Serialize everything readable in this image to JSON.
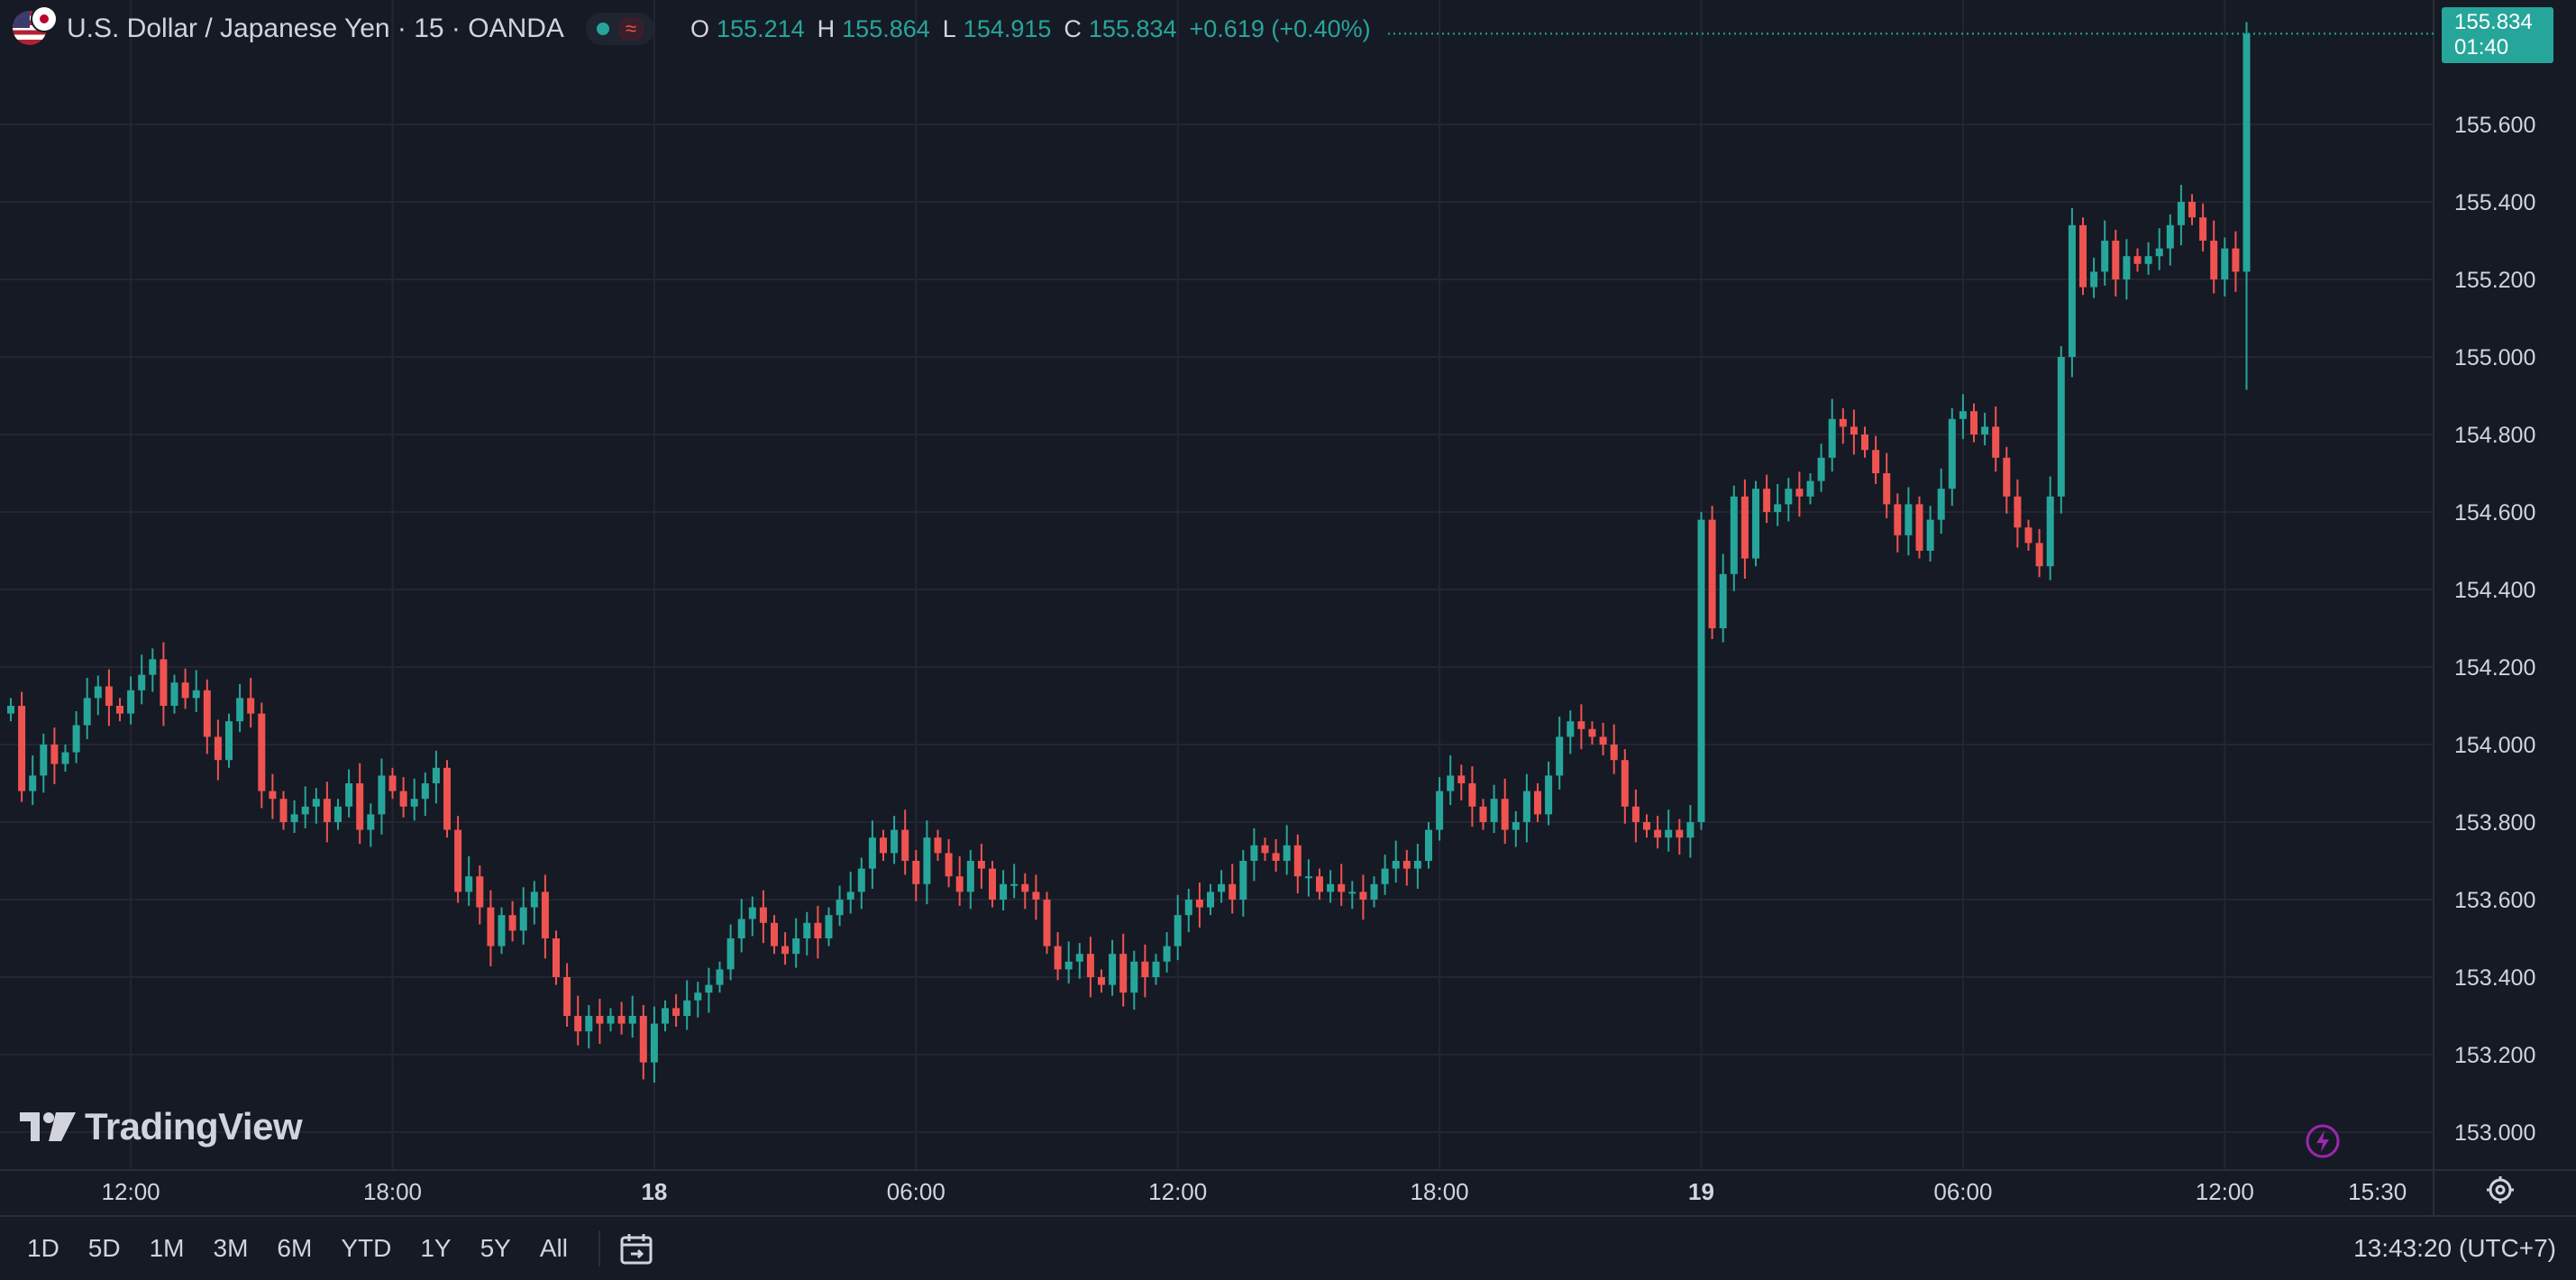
{
  "header": {
    "symbol_title": "U.S. Dollar / Japanese Yen · 15 · OANDA",
    "o_key": "O",
    "o_val": "155.214",
    "h_key": "H",
    "h_val": "155.864",
    "l_key": "L",
    "l_val": "154.915",
    "c_key": "C",
    "c_val": "155.834",
    "change": "+0.619 (+0.40%)",
    "status_icon": "market-open-dot",
    "wave_icon": "≈"
  },
  "last_price_tag": {
    "price": "155.834",
    "countdown": "01:40"
  },
  "logo_text": "TradingView",
  "range_buttons": [
    "1D",
    "5D",
    "1M",
    "3M",
    "6M",
    "YTD",
    "1Y",
    "5Y",
    "All"
  ],
  "clock": "13:43:20 (UTC+7)",
  "colors": {
    "up": "#26a69a",
    "down": "#ef5350",
    "background": "#161a25",
    "grid": "#232632",
    "text": "#d1d4dc"
  },
  "chart_data": {
    "type": "candlestick",
    "title": "",
    "interval": "15",
    "ylim": [
      152.9,
      156.34
    ],
    "y_ticks": [
      153.0,
      153.2,
      153.4,
      153.6,
      153.8,
      154.0,
      154.2,
      154.4,
      154.6,
      154.8,
      155.0,
      155.2,
      155.4,
      155.6
    ],
    "y_tick_labels": [
      "153.000",
      "153.200",
      "153.400",
      "153.600",
      "153.800",
      "154.000",
      "154.200",
      "154.400",
      "154.600",
      "154.800",
      "155.000",
      "155.200",
      "155.400",
      "155.600"
    ],
    "x_ticks": [
      {
        "label": "12:00",
        "bar": 11,
        "bold": false
      },
      {
        "label": "18:00",
        "bar": 35,
        "bold": false
      },
      {
        "label": "18",
        "bar": 59,
        "bold": true
      },
      {
        "label": "06:00",
        "bar": 83,
        "bold": false
      },
      {
        "label": "12:00",
        "bar": 107,
        "bold": false
      },
      {
        "label": "18:00",
        "bar": 131,
        "bold": false
      },
      {
        "label": "19",
        "bar": 155,
        "bold": true
      },
      {
        "label": "06:00",
        "bar": 179,
        "bold": false
      },
      {
        "label": "12:00",
        "bar": 203,
        "bold": false
      },
      {
        "label": "15:30",
        "bar": 217,
        "bold": false
      }
    ],
    "last_price": 155.834,
    "close": [
      154.1,
      153.88,
      153.92,
      154.0,
      153.95,
      153.98,
      154.05,
      154.12,
      154.15,
      154.1,
      154.08,
      154.14,
      154.18,
      154.22,
      154.1,
      154.16,
      154.12,
      154.14,
      154.02,
      153.96,
      154.06,
      154.12,
      154.08,
      153.88,
      153.86,
      153.8,
      153.82,
      153.84,
      153.86,
      153.8,
      153.84,
      153.9,
      153.78,
      153.82,
      153.92,
      153.88,
      153.84,
      153.86,
      153.9,
      153.94,
      153.78,
      153.62,
      153.66,
      153.58,
      153.48,
      153.56,
      153.52,
      153.58,
      153.62,
      153.5,
      153.4,
      153.3,
      153.26,
      153.3,
      153.28,
      153.3,
      153.28,
      153.3,
      153.18,
      153.28,
      153.32,
      153.3,
      153.34,
      153.36,
      153.38,
      153.42,
      153.5,
      153.55,
      153.58,
      153.54,
      153.48,
      153.46,
      153.5,
      153.54,
      153.5,
      153.56,
      153.6,
      153.62,
      153.68,
      153.76,
      153.72,
      153.78,
      153.7,
      153.64,
      153.76,
      153.72,
      153.66,
      153.62,
      153.7,
      153.68,
      153.6,
      153.64,
      153.64,
      153.62,
      153.6,
      153.48,
      153.42,
      153.44,
      153.46,
      153.4,
      153.38,
      153.46,
      153.36,
      153.44,
      153.4,
      153.44,
      153.48,
      153.56,
      153.6,
      153.58,
      153.62,
      153.64,
      153.6,
      153.7,
      153.74,
      153.72,
      153.7,
      153.74,
      153.66,
      153.66,
      153.62,
      153.64,
      153.62,
      153.62,
      153.6,
      153.64,
      153.68,
      153.7,
      153.68,
      153.7,
      153.78,
      153.88,
      153.92,
      153.9,
      153.84,
      153.8,
      153.86,
      153.78,
      153.8,
      153.88,
      153.82,
      153.92,
      154.02,
      154.06,
      154.04,
      154.02,
      154.0,
      153.96,
      153.84,
      153.8,
      153.78,
      153.76,
      153.78,
      153.76,
      153.8,
      154.58,
      154.3,
      154.44,
      154.64,
      154.48,
      154.66,
      154.6,
      154.62,
      154.66,
      154.64,
      154.68,
      154.74,
      154.84,
      154.82,
      154.8,
      154.76,
      154.7,
      154.62,
      154.54,
      154.62,
      154.5,
      154.58,
      154.66,
      154.84,
      154.86,
      154.8,
      154.82,
      154.74,
      154.64,
      154.56,
      154.52,
      154.46,
      154.64,
      155.0,
      155.34,
      155.18,
      155.22,
      155.3,
      155.2,
      155.26,
      155.24,
      155.26,
      155.28,
      155.34,
      155.4,
      155.36,
      155.3,
      155.2,
      155.28,
      155.22,
      155.834
    ]
  }
}
